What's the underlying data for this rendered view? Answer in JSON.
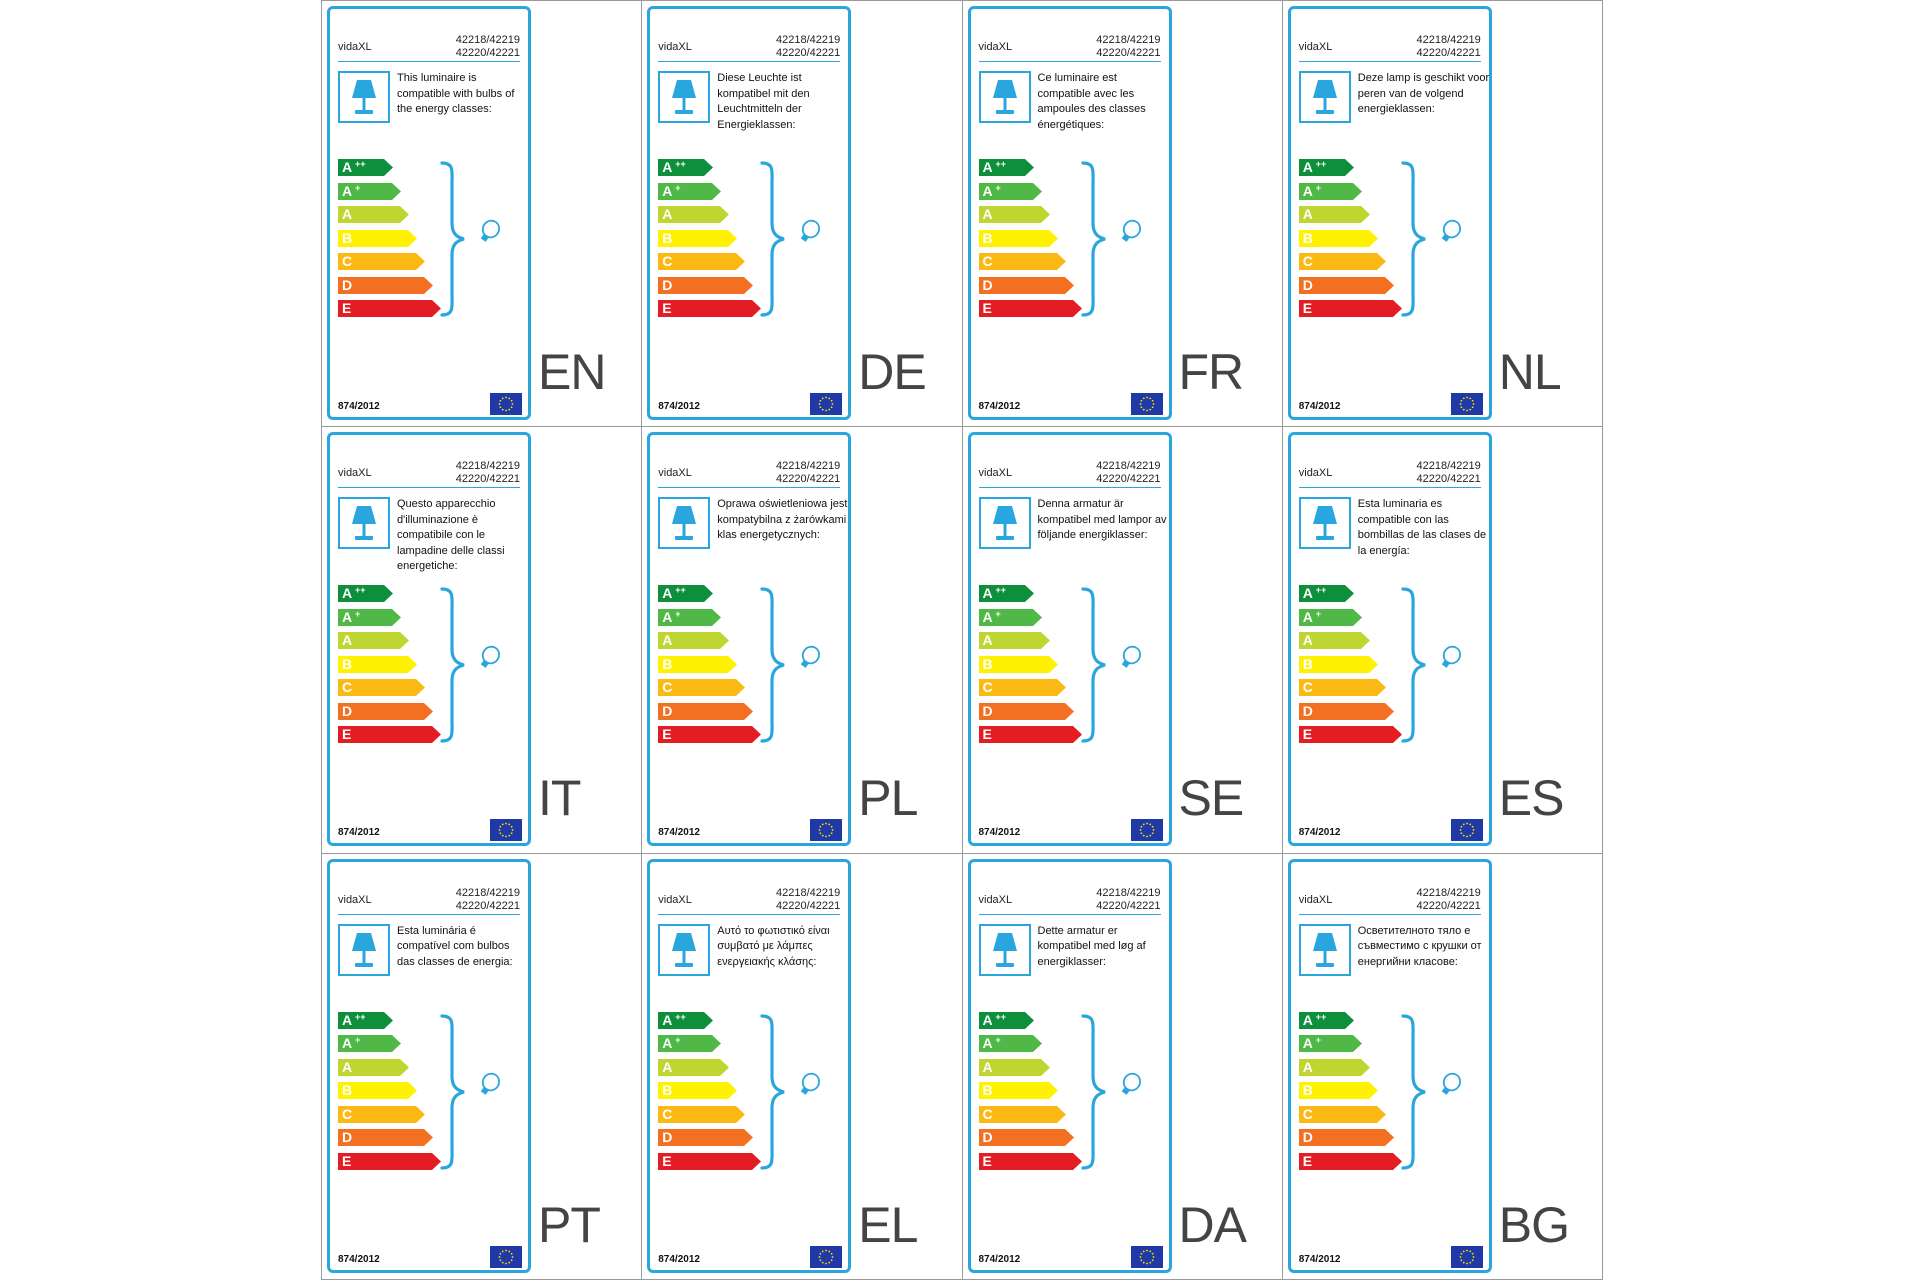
{
  "colors": {
    "frame": "#29a6de",
    "rating_colors": [
      "#0e8f3b",
      "#50b847",
      "#bfd630",
      "#fff200",
      "#fdb913",
      "#f36f21",
      "#e31d23"
    ],
    "eu_blue": "#1f3aa6",
    "eu_star": "#ffdd00"
  },
  "labels": [
    {
      "lang": "EN",
      "brand": "vidaXL",
      "model_1": "42218/42219",
      "model_2": "42220/42221",
      "description": "This luminaire is compatible with bulbs of the energy classes:",
      "classes": [
        "A",
        "A",
        "A",
        "B",
        "C",
        "D",
        "E"
      ],
      "superscripts": [
        "++",
        "+",
        "",
        "",
        "",
        "",
        ""
      ],
      "regulation": "874/2012",
      "lamp_icon": "table-lamp-icon",
      "bulb_icon": "light-bulb-icon"
    },
    {
      "lang": "DE",
      "brand": "vidaXL",
      "model_1": "42218/42219",
      "model_2": "42220/42221",
      "description": "Diese Leuchte ist kompatibel mit den Leuchtmitteln der Energieklassen:",
      "classes": [
        "A",
        "A",
        "A",
        "B",
        "C",
        "D",
        "E"
      ],
      "superscripts": [
        "++",
        "+",
        "",
        "",
        "",
        "",
        ""
      ],
      "regulation": "874/2012",
      "lamp_icon": "table-lamp-icon",
      "bulb_icon": "light-bulb-icon"
    },
    {
      "lang": "FR",
      "brand": "vidaXL",
      "model_1": "42218/42219",
      "model_2": "42220/42221",
      "description": "Ce luminaire est compatible avec les ampoules des classes énergétiques:",
      "classes": [
        "A",
        "A",
        "A",
        "B",
        "C",
        "D",
        "E"
      ],
      "superscripts": [
        "++",
        "+",
        "",
        "",
        "",
        "",
        ""
      ],
      "regulation": "874/2012",
      "lamp_icon": "table-lamp-icon",
      "bulb_icon": "light-bulb-icon"
    },
    {
      "lang": "NL",
      "brand": "vidaXL",
      "model_1": "42218/42219",
      "model_2": "42220/42221",
      "description": "Deze lamp is geschikt voor peren van de volgend energieklassen:",
      "classes": [
        "A",
        "A",
        "A",
        "B",
        "C",
        "D",
        "E"
      ],
      "superscripts": [
        "++",
        "+",
        "",
        "",
        "",
        "",
        ""
      ],
      "regulation": "874/2012",
      "lamp_icon": "table-lamp-icon",
      "bulb_icon": "light-bulb-icon"
    },
    {
      "lang": "IT",
      "brand": "vidaXL",
      "model_1": "42218/42219",
      "model_2": "42220/42221",
      "description": "Questo apparecchio d'illuminazione è compatibile con le lampadine delle classi energetiche:",
      "classes": [
        "A",
        "A",
        "A",
        "B",
        "C",
        "D",
        "E"
      ],
      "superscripts": [
        "++",
        "+",
        "",
        "",
        "",
        "",
        ""
      ],
      "regulation": "874/2012",
      "lamp_icon": "table-lamp-icon",
      "bulb_icon": "light-bulb-icon"
    },
    {
      "lang": "PL",
      "brand": "vidaXL",
      "model_1": "42218/42219",
      "model_2": "42220/42221",
      "description": "Oprawa oświetleniowa jest kompatybilna z żarówkami klas energetycznych:",
      "classes": [
        "A",
        "A",
        "A",
        "B",
        "C",
        "D",
        "E"
      ],
      "superscripts": [
        "++",
        "+",
        "",
        "",
        "",
        "",
        ""
      ],
      "regulation": "874/2012",
      "lamp_icon": "table-lamp-icon",
      "bulb_icon": "light-bulb-icon"
    },
    {
      "lang": "SE",
      "brand": "vidaXL",
      "model_1": "42218/42219",
      "model_2": "42220/42221",
      "description": "Denna armatur är kompatibel med lampor av följande energiklasser:",
      "classes": [
        "A",
        "A",
        "A",
        "B",
        "C",
        "D",
        "E"
      ],
      "superscripts": [
        "++",
        "+",
        "",
        "",
        "",
        "",
        ""
      ],
      "regulation": "874/2012",
      "lamp_icon": "table-lamp-icon",
      "bulb_icon": "light-bulb-icon"
    },
    {
      "lang": "ES",
      "brand": "vidaXL",
      "model_1": "42218/42219",
      "model_2": "42220/42221",
      "description": "Esta luminaria es compatible con las bombillas de las clases de la energía:",
      "classes": [
        "A",
        "A",
        "A",
        "B",
        "C",
        "D",
        "E"
      ],
      "superscripts": [
        "++",
        "+",
        "",
        "",
        "",
        "",
        ""
      ],
      "regulation": "874/2012",
      "lamp_icon": "table-lamp-icon",
      "bulb_icon": "light-bulb-icon"
    },
    {
      "lang": "PT",
      "brand": "vidaXL",
      "model_1": "42218/42219",
      "model_2": "42220/42221",
      "description": "Esta luminária é compatível com bulbos das classes de energia:",
      "classes": [
        "A",
        "A",
        "A",
        "B",
        "C",
        "D",
        "E"
      ],
      "superscripts": [
        "++",
        "+",
        "",
        "",
        "",
        "",
        ""
      ],
      "regulation": "874/2012",
      "lamp_icon": "table-lamp-icon",
      "bulb_icon": "light-bulb-icon"
    },
    {
      "lang": "EL",
      "brand": "vidaXL",
      "model_1": "42218/42219",
      "model_2": "42220/42221",
      "description": "Αυτό το φωτιστικό είναι συμβατό με λάμπες ενεργειακής κλάσης:",
      "classes": [
        "A",
        "A",
        "A",
        "B",
        "C",
        "D",
        "E"
      ],
      "superscripts": [
        "++",
        "+",
        "",
        "",
        "",
        "",
        ""
      ],
      "regulation": "874/2012",
      "lamp_icon": "table-lamp-icon",
      "bulb_icon": "light-bulb-icon"
    },
    {
      "lang": "DA",
      "brand": "vidaXL",
      "model_1": "42218/42219",
      "model_2": "42220/42221",
      "description": "Dette armatur er kompatibel med løg af energiklasser:",
      "classes": [
        "A",
        "A",
        "A",
        "B",
        "C",
        "D",
        "E"
      ],
      "superscripts": [
        "++",
        "+",
        "",
        "",
        "",
        "",
        ""
      ],
      "regulation": "874/2012",
      "lamp_icon": "table-lamp-icon",
      "bulb_icon": "light-bulb-icon"
    },
    {
      "lang": "BG",
      "brand": "vidaXL",
      "model_1": "42218/42219",
      "model_2": "42220/42221",
      "description": "Осветителното тяло е съвместимо с крушки от енергийни класове:",
      "classes": [
        "A",
        "A",
        "A",
        "B",
        "C",
        "D",
        "E"
      ],
      "superscripts": [
        "++",
        "+",
        "",
        "",
        "",
        "",
        ""
      ],
      "regulation": "874/2012",
      "lamp_icon": "table-lamp-icon",
      "bulb_icon": "light-bulb-icon"
    }
  ]
}
